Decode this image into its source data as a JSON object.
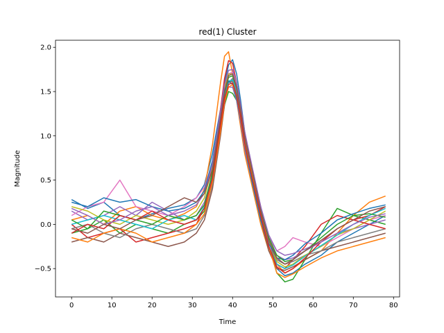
{
  "chart_data": {
    "type": "line",
    "title": "red(1) Cluster",
    "xlabel": "Time",
    "ylabel": "Magnitude",
    "xlim": [
      -4,
      81.5
    ],
    "ylim": [
      -0.82,
      2.08
    ],
    "xticks": [
      0,
      10,
      20,
      30,
      40,
      50,
      60,
      70,
      80
    ],
    "yticks": [
      -0.5,
      0.0,
      0.5,
      1.0,
      1.5,
      2.0
    ],
    "xtick_labels": [
      "0",
      "10",
      "20",
      "30",
      "40",
      "50",
      "60",
      "70",
      "80"
    ],
    "ytick_labels": [
      "−0.5",
      "0.0",
      "0.5",
      "1.0",
      "1.5",
      "2.0"
    ],
    "grid": false,
    "legend": "none",
    "series_colors": [
      "#1f77b4",
      "#ff7f0e",
      "#2ca02c",
      "#d62728",
      "#9467bd",
      "#8c564b",
      "#e377c2",
      "#7f7f7f",
      "#bcbd22",
      "#17becf"
    ],
    "x": [
      0,
      4,
      8,
      12,
      16,
      20,
      24,
      28,
      31,
      33,
      35,
      37,
      38,
      39,
      40,
      41,
      42,
      43,
      45,
      47,
      49,
      51,
      53,
      55,
      58,
      62,
      66,
      70,
      74,
      78
    ],
    "series": [
      {
        "values": [
          0.28,
          0.18,
          0.25,
          0.1,
          0.05,
          0.12,
          0.18,
          0.22,
          0.3,
          0.45,
          0.8,
          1.3,
          1.6,
          1.8,
          1.86,
          1.7,
          1.4,
          1.05,
          0.55,
          0.1,
          -0.25,
          -0.5,
          -0.58,
          -0.55,
          -0.45,
          -0.35,
          -0.2,
          -0.1,
          0.0,
          0.1
        ]
      },
      {
        "values": [
          0.05,
          0.1,
          0.0,
          0.15,
          0.2,
          0.1,
          0.05,
          0.12,
          0.2,
          0.4,
          0.9,
          1.6,
          1.9,
          1.95,
          1.7,
          1.4,
          1.1,
          0.8,
          0.4,
          0.0,
          -0.3,
          -0.45,
          -0.55,
          -0.5,
          -0.4,
          -0.3,
          -0.1,
          0.1,
          0.25,
          0.32
        ]
      },
      {
        "values": [
          -0.1,
          -0.05,
          0.05,
          -0.1,
          0.0,
          -0.05,
          -0.1,
          0.0,
          0.05,
          0.15,
          0.45,
          1.05,
          1.35,
          1.5,
          1.48,
          1.4,
          1.2,
          0.95,
          0.5,
          0.1,
          -0.25,
          -0.55,
          -0.65,
          -0.62,
          -0.4,
          -0.1,
          0.18,
          0.1,
          0.05,
          0.0
        ]
      },
      {
        "values": [
          0.0,
          -0.15,
          -0.1,
          -0.05,
          -0.2,
          -0.15,
          -0.1,
          -0.05,
          0.0,
          0.2,
          0.6,
          1.3,
          1.65,
          1.85,
          1.82,
          1.6,
          1.3,
          1.0,
          0.6,
          0.2,
          -0.2,
          -0.45,
          -0.5,
          -0.4,
          -0.25,
          0.0,
          0.1,
          0.05,
          0.1,
          0.2
        ]
      },
      {
        "values": [
          0.15,
          0.05,
          0.1,
          0.2,
          0.1,
          0.25,
          0.15,
          0.05,
          0.1,
          0.25,
          0.55,
          1.1,
          1.4,
          1.55,
          1.55,
          1.4,
          1.15,
          0.85,
          0.45,
          0.05,
          -0.2,
          -0.35,
          -0.4,
          -0.38,
          -0.3,
          -0.2,
          -0.1,
          -0.05,
          0.0,
          0.05
        ]
      },
      {
        "values": [
          -0.2,
          -0.15,
          -0.2,
          -0.1,
          -0.15,
          -0.2,
          -0.25,
          -0.2,
          -0.1,
          0.05,
          0.4,
          1.0,
          1.35,
          1.6,
          1.62,
          1.5,
          1.25,
          0.95,
          0.5,
          0.05,
          -0.3,
          -0.5,
          -0.52,
          -0.48,
          -0.4,
          -0.3,
          -0.25,
          -0.2,
          -0.15,
          -0.1
        ]
      },
      {
        "values": [
          0.1,
          0.2,
          0.25,
          0.5,
          0.2,
          0.15,
          0.1,
          0.2,
          0.3,
          0.42,
          0.7,
          1.2,
          1.5,
          1.7,
          1.72,
          1.55,
          1.3,
          1.0,
          0.55,
          0.15,
          -0.15,
          -0.3,
          -0.25,
          -0.15,
          -0.2,
          -0.25,
          -0.15,
          -0.05,
          0.05,
          0.1
        ]
      },
      {
        "values": [
          -0.05,
          0.0,
          -0.1,
          -0.15,
          -0.05,
          0.0,
          -0.05,
          -0.1,
          -0.05,
          0.1,
          0.45,
          1.05,
          1.4,
          1.6,
          1.65,
          1.5,
          1.25,
          0.95,
          0.55,
          0.15,
          -0.2,
          -0.4,
          -0.45,
          -0.42,
          -0.35,
          -0.3,
          -0.2,
          -0.15,
          -0.1,
          -0.05
        ]
      },
      {
        "values": [
          0.2,
          0.15,
          0.05,
          0.0,
          0.1,
          0.05,
          0.0,
          0.05,
          0.15,
          0.3,
          0.65,
          1.25,
          1.55,
          1.7,
          1.7,
          1.55,
          1.3,
          1.0,
          0.55,
          0.15,
          -0.2,
          -0.42,
          -0.48,
          -0.45,
          -0.35,
          -0.25,
          -0.12,
          -0.05,
          0.05,
          0.15
        ]
      },
      {
        "values": [
          0.0,
          0.05,
          0.1,
          0.05,
          0.0,
          -0.05,
          0.05,
          0.1,
          0.05,
          0.2,
          0.55,
          1.15,
          1.45,
          1.62,
          1.63,
          1.48,
          1.22,
          0.92,
          0.48,
          0.08,
          -0.25,
          -0.45,
          -0.5,
          -0.46,
          -0.36,
          -0.24,
          -0.12,
          0.0,
          0.1,
          0.18
        ]
      },
      {
        "values": [
          0.25,
          0.2,
          0.3,
          0.25,
          0.28,
          0.2,
          0.15,
          0.18,
          0.25,
          0.38,
          0.72,
          1.25,
          1.52,
          1.62,
          1.58,
          1.42,
          1.18,
          0.88,
          0.45,
          0.05,
          -0.22,
          -0.38,
          -0.4,
          -0.35,
          -0.22,
          -0.1,
          0.05,
          0.12,
          0.18,
          0.22
        ]
      },
      {
        "values": [
          -0.15,
          -0.2,
          -0.1,
          -0.05,
          -0.1,
          -0.2,
          -0.15,
          -0.1,
          0.0,
          0.12,
          0.48,
          1.05,
          1.38,
          1.55,
          1.58,
          1.45,
          1.2,
          0.9,
          0.5,
          0.1,
          -0.25,
          -0.55,
          -0.6,
          -0.56,
          -0.48,
          -0.38,
          -0.3,
          -0.25,
          -0.2,
          -0.15
        ]
      },
      {
        "values": [
          0.05,
          -0.05,
          0.15,
          0.1,
          0.05,
          0.0,
          0.1,
          0.05,
          0.1,
          0.22,
          0.58,
          1.18,
          1.48,
          1.66,
          1.68,
          1.54,
          1.3,
          1.0,
          0.58,
          0.18,
          -0.15,
          -0.35,
          -0.42,
          -0.4,
          -0.3,
          -0.15,
          0.0,
          0.1,
          0.12,
          0.08
        ]
      },
      {
        "values": [
          -0.1,
          0.0,
          -0.05,
          0.1,
          0.05,
          0.15,
          0.05,
          0.0,
          0.05,
          0.18,
          0.52,
          1.12,
          1.42,
          1.58,
          1.6,
          1.46,
          1.22,
          0.92,
          0.5,
          0.1,
          -0.25,
          -0.48,
          -0.55,
          -0.5,
          -0.38,
          -0.2,
          -0.05,
          0.05,
          0.0,
          -0.05
        ]
      },
      {
        "values": [
          0.18,
          0.1,
          0.0,
          0.05,
          0.15,
          0.2,
          0.1,
          0.15,
          0.22,
          0.35,
          0.68,
          1.28,
          1.58,
          1.74,
          1.75,
          1.6,
          1.35,
          1.05,
          0.62,
          0.2,
          -0.12,
          -0.3,
          -0.35,
          -0.33,
          -0.28,
          -0.2,
          -0.1,
          0.0,
          0.08,
          0.12
        ]
      },
      {
        "values": [
          -0.05,
          -0.1,
          0.0,
          -0.05,
          0.05,
          0.1,
          0.2,
          0.3,
          0.25,
          0.35,
          0.62,
          1.2,
          1.5,
          1.68,
          1.7,
          1.55,
          1.3,
          1.0,
          0.58,
          0.15,
          -0.18,
          -0.38,
          -0.45,
          -0.4,
          -0.3,
          -0.18,
          -0.05,
          0.05,
          0.15,
          0.2
        ]
      }
    ]
  }
}
